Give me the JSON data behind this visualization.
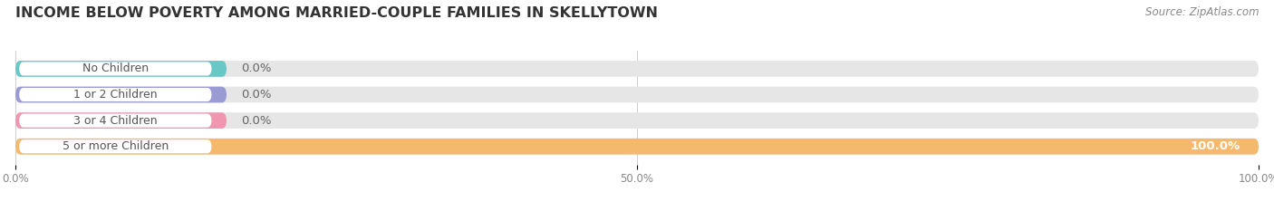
{
  "title": "INCOME BELOW POVERTY AMONG MARRIED-COUPLE FAMILIES IN SKELLYTOWN",
  "source": "Source: ZipAtlas.com",
  "categories": [
    "No Children",
    "1 or 2 Children",
    "3 or 4 Children",
    "5 or more Children"
  ],
  "values": [
    0.0,
    0.0,
    0.0,
    100.0
  ],
  "bar_colors": [
    "#68c8c6",
    "#9b9bd4",
    "#f096b0",
    "#f5b96e"
  ],
  "background_color": "#ffffff",
  "bar_bg_color": "#e6e6e6",
  "xlim": [
    0,
    100
  ],
  "xticks": [
    0.0,
    50.0,
    100.0
  ],
  "xtick_labels": [
    "0.0%",
    "50.0%",
    "100.0%"
  ],
  "title_fontsize": 11.5,
  "source_fontsize": 8.5,
  "bar_height": 0.62,
  "value_label_fontsize": 9.5
}
